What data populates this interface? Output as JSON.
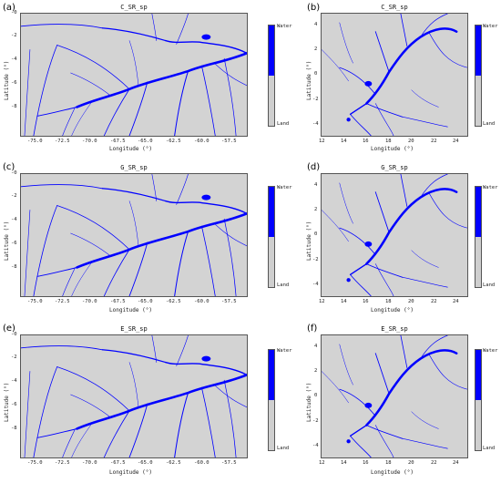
{
  "colors": {
    "water": "#0000ff",
    "land": "#d3d3d3"
  },
  "panels": [
    {
      "letter": "(a)",
      "title": "C_SR_sp",
      "xlabel": "Longitude (°)",
      "ylabel": "Latitude (°)",
      "xticks": [
        "-75.0",
        "-72.5",
        "-70.0",
        "-67.5",
        "-65.0",
        "-62.5",
        "-60.0",
        "-57.5"
      ],
      "yticks": [
        "-0",
        "-2",
        "-4",
        "-6",
        "-8"
      ],
      "legend": {
        "top": "Water",
        "bottom": "Land"
      }
    },
    {
      "letter": "(b)",
      "title": "C_SR_sp",
      "xlabel": "Longitude (°)",
      "ylabel": "Latitude (°)",
      "xticks": [
        "12",
        "14",
        "16",
        "18",
        "20",
        "22",
        "24"
      ],
      "yticks": [
        "4",
        "2",
        "0",
        "-2",
        "-4"
      ],
      "legend": {
        "top": "Water",
        "bottom": "Land"
      }
    },
    {
      "letter": "(c)",
      "title": "G_SR_sp",
      "xlabel": "Longitude (°)",
      "ylabel": "Latitude (°)",
      "xticks": [
        "-75.0",
        "-72.5",
        "-70.0",
        "-67.5",
        "-65.0",
        "-62.5",
        "-60.0",
        "-57.5"
      ],
      "yticks": [
        "-0",
        "-2",
        "-4",
        "-6",
        "-8"
      ],
      "legend": {
        "top": "Water",
        "bottom": "Land"
      }
    },
    {
      "letter": "(d)",
      "title": "G_SR_sp",
      "xlabel": "Longitude (°)",
      "ylabel": "Latitude (°)",
      "xticks": [
        "12",
        "14",
        "16",
        "18",
        "20",
        "22",
        "24"
      ],
      "yticks": [
        "4",
        "2",
        "0",
        "-2",
        "-4"
      ],
      "legend": {
        "top": "Water",
        "bottom": "Land"
      }
    },
    {
      "letter": "(e)",
      "title": "E_SR_sp",
      "xlabel": "Longitude (°)",
      "ylabel": "Latitude (°)",
      "xticks": [
        "-75.0",
        "-72.5",
        "-70.0",
        "-67.5",
        "-65.0",
        "-62.5",
        "-60.0",
        "-57.5"
      ],
      "yticks": [
        "-0",
        "-2",
        "-4",
        "-6",
        "-8"
      ],
      "legend": {
        "top": "Water",
        "bottom": "Land"
      }
    },
    {
      "letter": "(f)",
      "title": "E_SR_sp",
      "xlabel": "Longitude (°)",
      "ylabel": "Latitude (°)",
      "xticks": [
        "12",
        "14",
        "16",
        "18",
        "20",
        "22",
        "24"
      ],
      "yticks": [
        "4",
        "2",
        "0",
        "-2",
        "-4"
      ],
      "legend": {
        "top": "Water",
        "bottom": "Land"
      }
    }
  ]
}
